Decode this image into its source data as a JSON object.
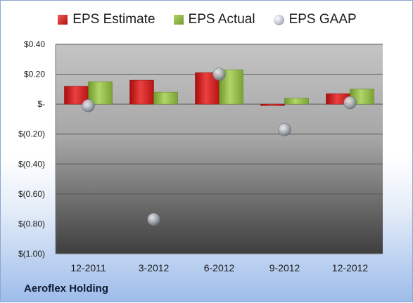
{
  "chart_data": {
    "type": "bar",
    "categories": [
      "12-2011",
      "3-2012",
      "6-2012",
      "9-2012",
      "12-2012"
    ],
    "series": [
      {
        "name": "EPS Estimate",
        "type": "bar",
        "color": "#c91f1f",
        "values": [
          0.12,
          0.16,
          0.21,
          -0.01,
          0.07
        ]
      },
      {
        "name": "EPS Actual",
        "type": "bar",
        "color": "#8db445",
        "values": [
          0.15,
          0.08,
          0.23,
          0.04,
          0.1
        ]
      },
      {
        "name": "EPS GAAP",
        "type": "scatter",
        "color": "#a8aeb6",
        "values": [
          -0.01,
          -0.77,
          0.2,
          -0.17,
          0.01
        ]
      }
    ],
    "yticks": [
      {
        "value": 0.4,
        "label": "$0.40"
      },
      {
        "value": 0.2,
        "label": "$0.20"
      },
      {
        "value": 0,
        "label": "$-"
      },
      {
        "value": -0.2,
        "label": "$(0.20)"
      },
      {
        "value": -0.4,
        "label": "$(0.40)"
      },
      {
        "value": -0.6,
        "label": "$(0.60)"
      },
      {
        "value": -0.8,
        "label": "$(0.80)"
      },
      {
        "value": -1.0,
        "label": "$(1.00)"
      }
    ],
    "ylim": [
      -1.0,
      0.4
    ],
    "grid": true,
    "legend_position": "top"
  },
  "legend": {
    "estimate": "EPS Estimate",
    "actual": "EPS Actual",
    "gaap": "EPS GAAP"
  },
  "company_name": "Aeroflex Holding"
}
